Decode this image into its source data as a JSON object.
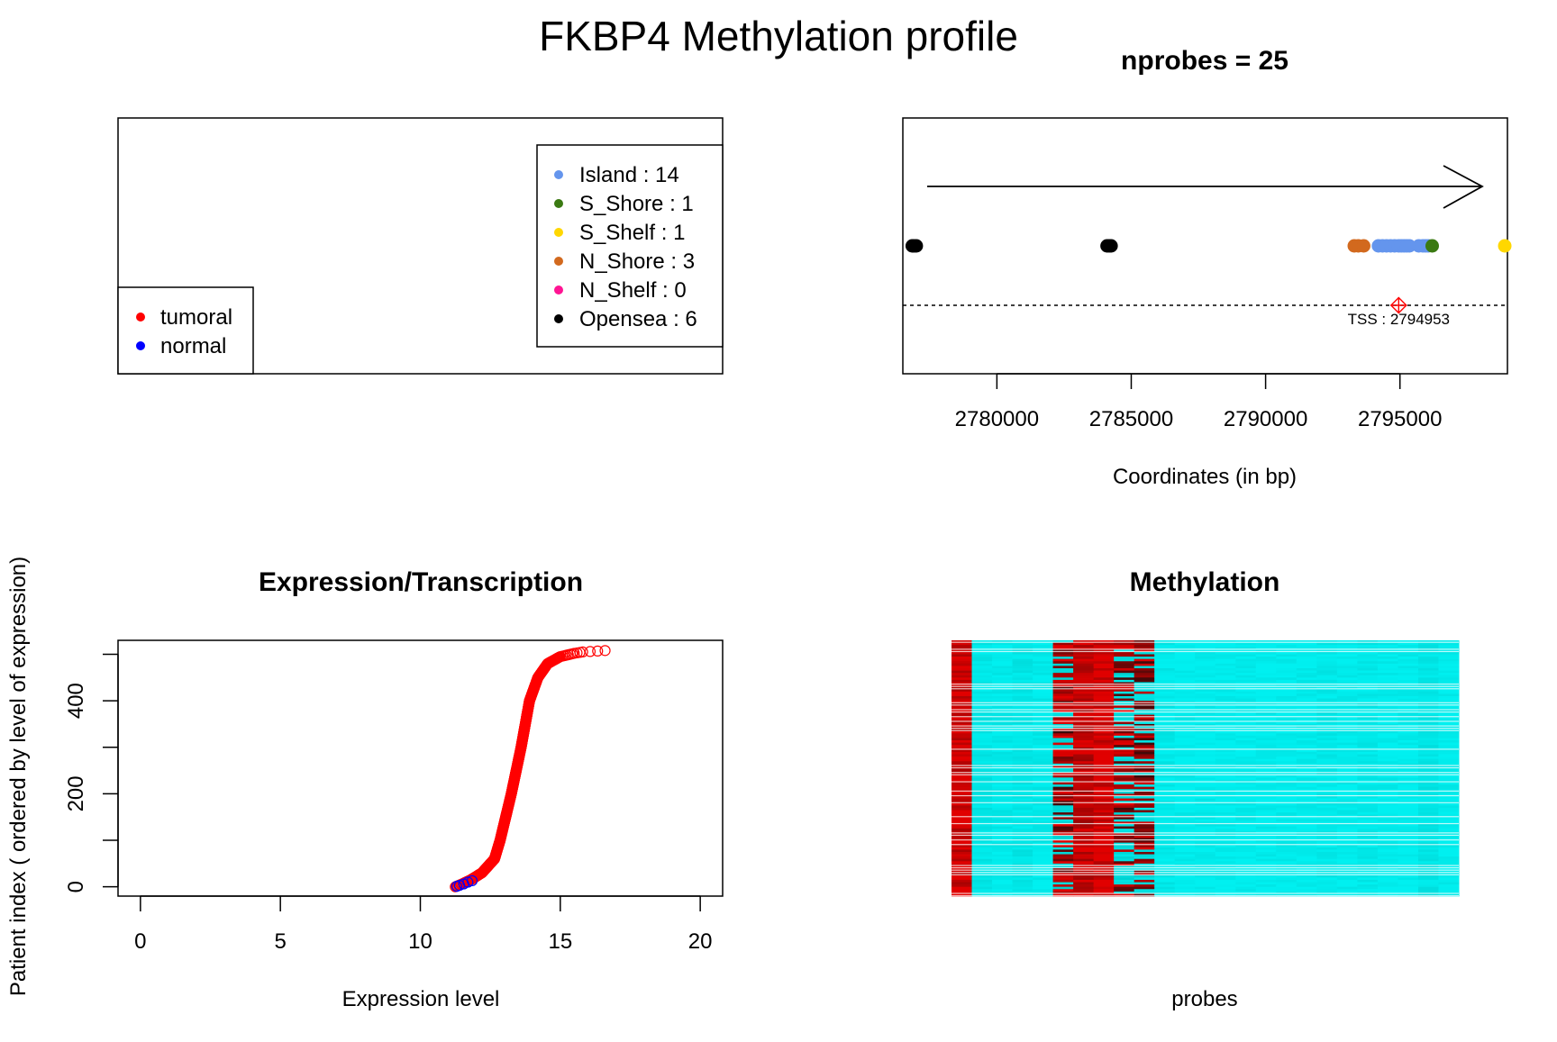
{
  "main_title": "FKBP4 Methylation profile",
  "colors": {
    "tumoral": "#ff0000",
    "normal": "#0000ff",
    "island": "#6495ed",
    "s_shore": "#3b7a12",
    "s_shelf": "#ffd700",
    "n_shore": "#d2691e",
    "n_shelf": "#ff1493",
    "opensea": "#000000",
    "heat_high": "#e10000",
    "heat_mid_dark": "#3a0a0a",
    "heat_low": "#00f0f0",
    "heat_low_dark": "#00cfcf"
  },
  "legend_panel": {
    "sample_legend": [
      {
        "label": "tumoral",
        "color_key": "tumoral"
      },
      {
        "label": "normal",
        "color_key": "normal"
      }
    ],
    "probe_legend": [
      {
        "label": "Island : 14",
        "color_key": "island"
      },
      {
        "label": "S_Shore : 1",
        "color_key": "s_shore"
      },
      {
        "label": "S_Shelf : 1",
        "color_key": "s_shelf"
      },
      {
        "label": "N_Shore : 3",
        "color_key": "n_shore"
      },
      {
        "label": "N_Shelf : 0",
        "color_key": "n_shelf"
      },
      {
        "label": "Opensea : 6",
        "color_key": "opensea"
      }
    ]
  },
  "chart_data": [
    {
      "type": "scatter",
      "title": "nprobes = 25",
      "xlabel": "Coordinates (in bp)",
      "ylabel": "",
      "xlim": [
        2776500,
        2799000
      ],
      "xticks": [
        2780000,
        2785000,
        2790000,
        2795000
      ],
      "tss_label": "TSS : 2794953",
      "tss_position": 2794953,
      "strand_arrow": "forward",
      "points": [
        {
          "x": 2776850,
          "category": "opensea"
        },
        {
          "x": 2777000,
          "category": "opensea"
        },
        {
          "x": 2784100,
          "category": "opensea"
        },
        {
          "x": 2784250,
          "category": "opensea"
        },
        {
          "x": 2776900,
          "category": "opensea"
        },
        {
          "x": 2784180,
          "category": "opensea"
        },
        {
          "x": 2793300,
          "category": "n_shore"
        },
        {
          "x": 2793450,
          "category": "n_shore"
        },
        {
          "x": 2793650,
          "category": "n_shore"
        },
        {
          "x": 2794200,
          "category": "island"
        },
        {
          "x": 2794350,
          "category": "island"
        },
        {
          "x": 2794500,
          "category": "island"
        },
        {
          "x": 2794650,
          "category": "island"
        },
        {
          "x": 2794800,
          "category": "island"
        },
        {
          "x": 2794950,
          "category": "island"
        },
        {
          "x": 2795050,
          "category": "island"
        },
        {
          "x": 2795150,
          "category": "island"
        },
        {
          "x": 2795250,
          "category": "island"
        },
        {
          "x": 2795350,
          "category": "island"
        },
        {
          "x": 2795700,
          "category": "island"
        },
        {
          "x": 2795850,
          "category": "island"
        },
        {
          "x": 2795950,
          "category": "island"
        },
        {
          "x": 2796050,
          "category": "island"
        },
        {
          "x": 2796200,
          "category": "s_shore"
        },
        {
          "x": 2798900,
          "category": "s_shelf"
        }
      ]
    },
    {
      "type": "scatter",
      "title": "Expression/Transcription",
      "xlabel": "Expression level",
      "ylabel": "Patient index ( ordered by level of expression)",
      "xlim": [
        -0.8,
        20.8
      ],
      "ylim": [
        -20,
        530
      ],
      "xticks": [
        0,
        5,
        10,
        15,
        20
      ],
      "yticks": [
        0,
        200,
        400
      ],
      "n_patients": 509,
      "curve_quantiles": [
        {
          "index": 0,
          "value": 11.25
        },
        {
          "index": 5,
          "value": 11.45
        },
        {
          "index": 15,
          "value": 11.8
        },
        {
          "index": 30,
          "value": 12.2
        },
        {
          "index": 60,
          "value": 12.65
        },
        {
          "index": 100,
          "value": 12.85
        },
        {
          "index": 200,
          "value": 13.25
        },
        {
          "index": 300,
          "value": 13.6
        },
        {
          "index": 400,
          "value": 13.9
        },
        {
          "index": 450,
          "value": 14.2
        },
        {
          "index": 480,
          "value": 14.55
        },
        {
          "index": 495,
          "value": 15.0
        },
        {
          "index": 502,
          "value": 15.5
        },
        {
          "index": 505,
          "value": 15.8
        },
        {
          "index": 508,
          "value": 16.6
        }
      ],
      "normal_points": [
        {
          "index": 1,
          "value": 11.3
        },
        {
          "index": 3,
          "value": 11.4
        },
        {
          "index": 6,
          "value": 11.55
        },
        {
          "index": 10,
          "value": 11.7
        },
        {
          "index": 13,
          "value": 11.85
        }
      ]
    },
    {
      "type": "heatmap",
      "title": "Methylation",
      "xlabel": "probes",
      "ylabel": "",
      "n_probes": 25,
      "n_rows": 509,
      "column_levels": [
        0.95,
        0.15,
        0.1,
        0.15,
        0.1,
        0.7,
        0.9,
        0.98,
        0.6,
        0.55,
        0.1,
        0.05,
        0.05,
        0.05,
        0.05,
        0.05,
        0.05,
        0.05,
        0.1,
        0.05,
        0.1,
        0.05,
        0.05,
        0.15,
        0.05
      ]
    }
  ]
}
